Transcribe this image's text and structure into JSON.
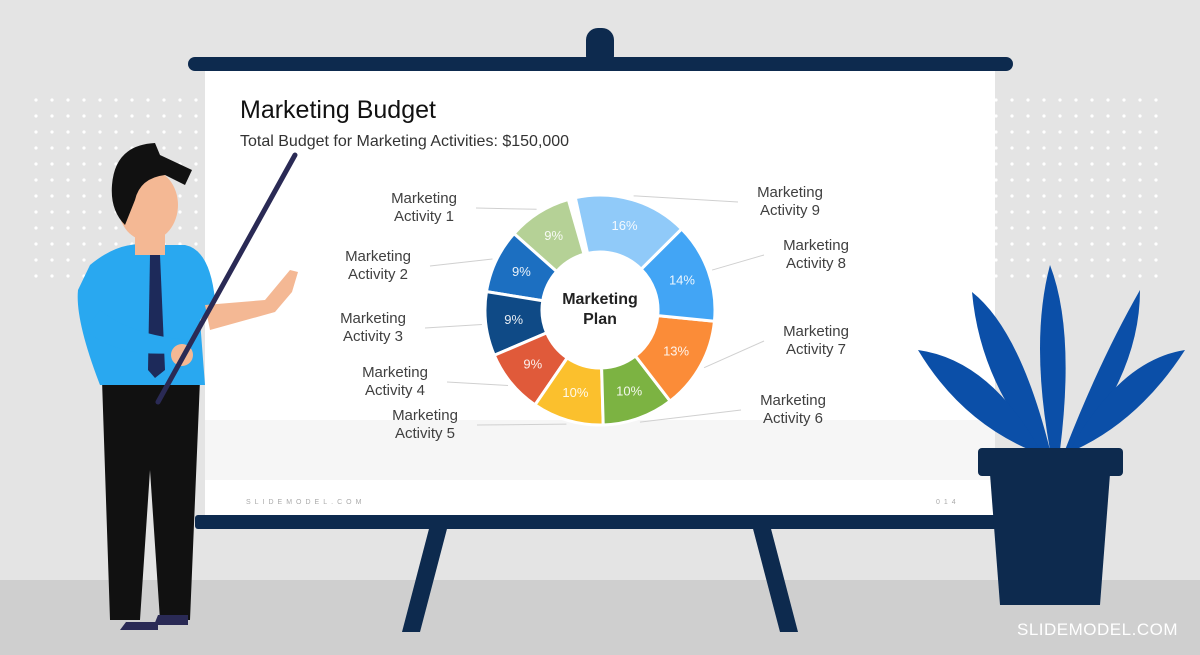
{
  "chart_data": {
    "type": "donut",
    "title": "Marketing Budget",
    "subtitle": "Total Budget for Marketing Activities: $150,000",
    "center_label": "Marketing Plan",
    "categories": [
      "Marketing Activity 1",
      "Marketing Activity 2",
      "Marketing Activity 3",
      "Marketing Activity 4",
      "Marketing Activity 5",
      "Marketing Activity 6",
      "Marketing Activity 7",
      "Marketing Activity 8",
      "Marketing Activity 9"
    ],
    "values": [
      9,
      9,
      9,
      9,
      10,
      10,
      13,
      14,
      16
    ],
    "value_labels": [
      "9%",
      "9%",
      "9%",
      "9%",
      "10%",
      "10%",
      "13%",
      "14%",
      "16%"
    ],
    "colors": [
      "#b5d196",
      "#1c6fc1",
      "#0f4a86",
      "#e05a3a",
      "#fbc02d",
      "#7cb342",
      "#fb8c38",
      "#42a5f5",
      "#90caf9"
    ]
  },
  "slide": {
    "footer": "SLIDEMODEL.COM",
    "page_number": "014"
  },
  "watermark": "SLIDEMODEL.COM"
}
